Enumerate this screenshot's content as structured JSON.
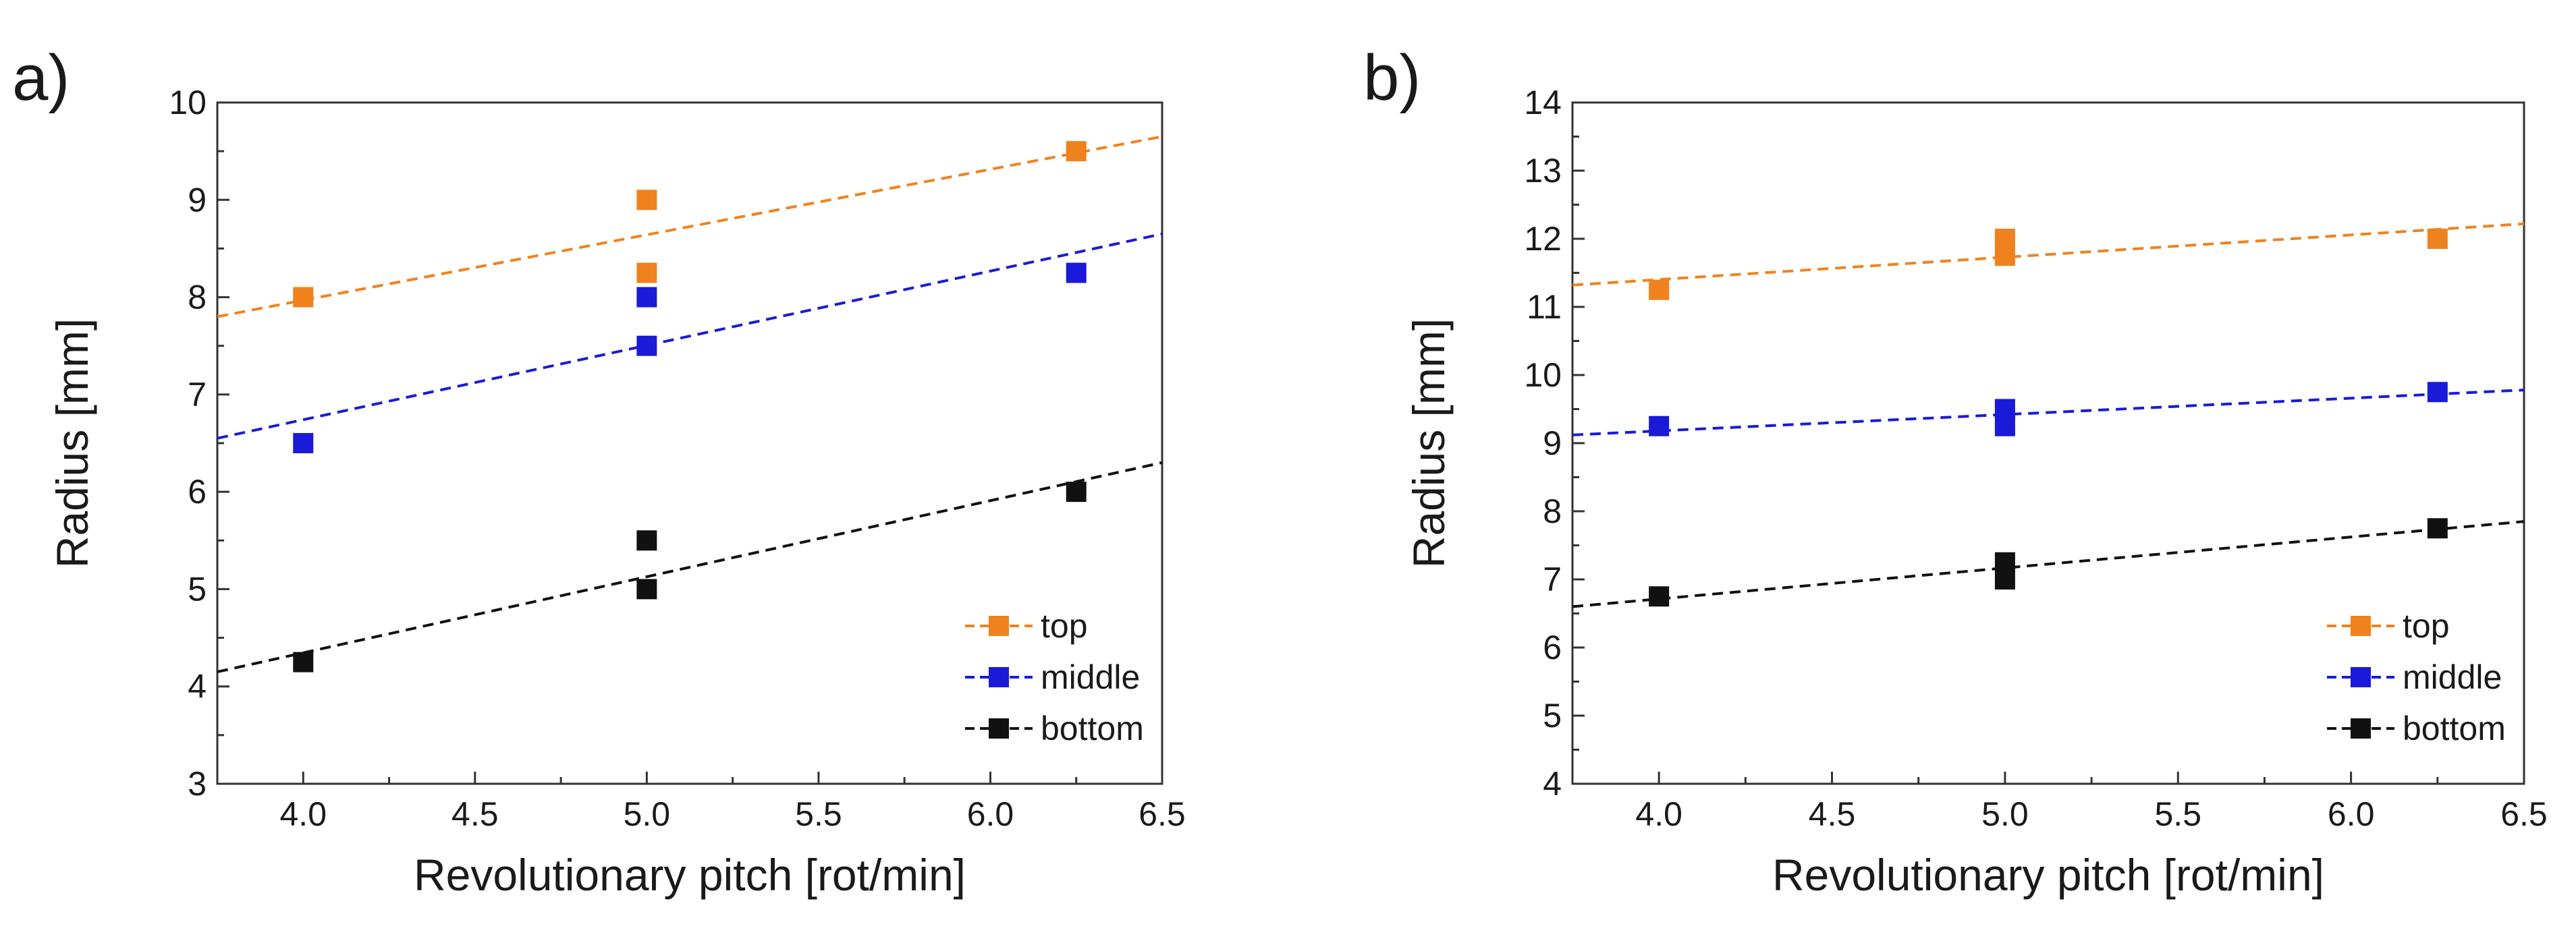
{
  "chart_data": [
    {
      "type": "scatter",
      "panel_label": "a)",
      "xlabel": "Revolutionary pitch [rot/min]",
      "ylabel": "Radius [mm]",
      "xlim": [
        3.75,
        6.5
      ],
      "ylim": [
        3,
        10
      ],
      "xticks": [
        "4.0",
        "4.5",
        "5.0",
        "5.5",
        "6.0",
        "6.5"
      ],
      "yticks": [
        "3",
        "4",
        "5",
        "6",
        "7",
        "8",
        "9",
        "10"
      ],
      "legend_position": "bottom-right",
      "series": [
        {
          "name": "top",
          "color": "#f0821e",
          "points": [
            [
              4.0,
              8.0
            ],
            [
              5.0,
              9.0
            ],
            [
              5.0,
              8.25
            ],
            [
              6.25,
              9.5
            ]
          ],
          "fit": [
            [
              3.75,
              7.8
            ],
            [
              6.5,
              9.65
            ]
          ]
        },
        {
          "name": "middle",
          "color": "#1a1ad8",
          "points": [
            [
              4.0,
              6.5
            ],
            [
              5.0,
              8.0
            ],
            [
              5.0,
              7.5
            ],
            [
              6.25,
              8.25
            ]
          ],
          "fit": [
            [
              3.75,
              6.55
            ],
            [
              6.5,
              8.65
            ]
          ]
        },
        {
          "name": "bottom",
          "color": "#111111",
          "points": [
            [
              4.0,
              4.25
            ],
            [
              5.0,
              5.5
            ],
            [
              5.0,
              5.0
            ],
            [
              6.25,
              6.0
            ]
          ],
          "fit": [
            [
              3.75,
              4.15
            ],
            [
              6.5,
              6.3
            ]
          ]
        }
      ]
    },
    {
      "type": "scatter",
      "panel_label": "b)",
      "xlabel": "Revolutionary pitch [rot/min]",
      "ylabel": "Radius [mm]",
      "xlim": [
        3.75,
        6.5
      ],
      "ylim": [
        4,
        14
      ],
      "xticks": [
        "4.0",
        "4.5",
        "5.0",
        "5.5",
        "6.0",
        "6.5"
      ],
      "yticks": [
        "4",
        "5",
        "6",
        "7",
        "8",
        "9",
        "10",
        "11",
        "12",
        "13",
        "14"
      ],
      "legend_position": "bottom-right",
      "series": [
        {
          "name": "top",
          "color": "#f0821e",
          "points": [
            [
              4.0,
              11.25
            ],
            [
              5.0,
              12.0
            ],
            [
              5.0,
              11.75
            ],
            [
              6.25,
              12.0
            ]
          ],
          "fit": [
            [
              3.75,
              11.32
            ],
            [
              6.5,
              12.22
            ]
          ]
        },
        {
          "name": "middle",
          "color": "#1a1ad8",
          "points": [
            [
              4.0,
              9.25
            ],
            [
              5.0,
              9.5
            ],
            [
              5.0,
              9.25
            ],
            [
              6.25,
              9.75
            ]
          ],
          "fit": [
            [
              3.75,
              9.12
            ],
            [
              6.5,
              9.78
            ]
          ]
        },
        {
          "name": "bottom",
          "color": "#111111",
          "points": [
            [
              4.0,
              6.75
            ],
            [
              5.0,
              7.25
            ],
            [
              5.0,
              7.0
            ],
            [
              6.25,
              7.75
            ]
          ],
          "fit": [
            [
              3.75,
              6.6
            ],
            [
              6.5,
              7.85
            ]
          ]
        }
      ]
    }
  ]
}
